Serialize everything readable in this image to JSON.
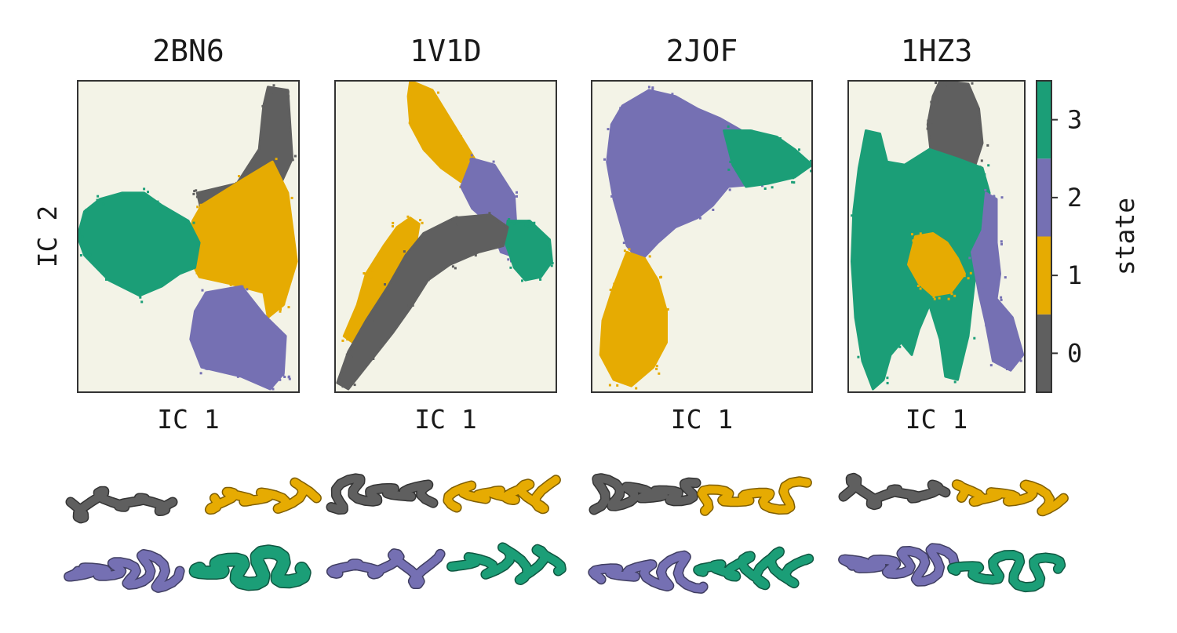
{
  "chart_data": {
    "type": "heatmap",
    "description_free": true,
    "panels": [
      {
        "title": "2BN6",
        "xlabel": "IC 1",
        "ylabel": "IC 2",
        "regions": [
          {
            "state": 0,
            "points": [
              [
                0.86,
                0.02
              ],
              [
                0.95,
                0.03
              ],
              [
                0.97,
                0.25
              ],
              [
                0.86,
                0.42
              ],
              [
                0.68,
                0.45
              ],
              [
                0.56,
                0.42
              ],
              [
                0.54,
                0.36
              ],
              [
                0.72,
                0.33
              ],
              [
                0.82,
                0.22
              ],
              [
                0.84,
                0.08
              ]
            ]
          },
          {
            "state": 1,
            "points": [
              [
                0.56,
                0.4
              ],
              [
                0.74,
                0.32
              ],
              [
                0.88,
                0.26
              ],
              [
                0.95,
                0.36
              ],
              [
                0.99,
                0.58
              ],
              [
                0.93,
                0.72
              ],
              [
                0.86,
                0.76
              ],
              [
                0.84,
                0.68
              ],
              [
                0.68,
                0.65
              ],
              [
                0.55,
                0.63
              ],
              [
                0.49,
                0.55
              ],
              [
                0.52,
                0.45
              ]
            ]
          },
          {
            "state": 2,
            "points": [
              [
                0.58,
                0.68
              ],
              [
                0.74,
                0.66
              ],
              [
                0.84,
                0.75
              ],
              [
                0.94,
                0.82
              ],
              [
                0.93,
                0.94
              ],
              [
                0.87,
                0.99
              ],
              [
                0.74,
                0.95
              ],
              [
                0.56,
                0.92
              ],
              [
                0.51,
                0.83
              ],
              [
                0.53,
                0.74
              ]
            ]
          },
          {
            "state": 3,
            "points": [
              [
                0.03,
                0.42
              ],
              [
                0.1,
                0.38
              ],
              [
                0.2,
                0.36
              ],
              [
                0.3,
                0.36
              ],
              [
                0.38,
                0.4
              ],
              [
                0.5,
                0.45
              ],
              [
                0.55,
                0.52
              ],
              [
                0.53,
                0.6
              ],
              [
                0.46,
                0.62
              ],
              [
                0.38,
                0.66
              ],
              [
                0.28,
                0.69
              ],
              [
                0.14,
                0.64
              ],
              [
                0.03,
                0.56
              ],
              [
                0.0,
                0.5
              ]
            ]
          }
        ]
      },
      {
        "title": "1V1D",
        "xlabel": "IC 1",
        "ylabel": "",
        "regions": [
          {
            "state": 1,
            "points": [
              [
                0.34,
                0.0
              ],
              [
                0.44,
                0.03
              ],
              [
                0.57,
                0.18
              ],
              [
                0.63,
                0.25
              ],
              [
                0.65,
                0.3
              ],
              [
                0.58,
                0.33
              ],
              [
                0.48,
                0.28
              ],
              [
                0.4,
                0.22
              ],
              [
                0.34,
                0.14
              ],
              [
                0.33,
                0.05
              ]
            ]
          },
          {
            "state": 2,
            "points": [
              [
                0.62,
                0.25
              ],
              [
                0.72,
                0.27
              ],
              [
                0.81,
                0.37
              ],
              [
                0.82,
                0.48
              ],
              [
                0.79,
                0.56
              ],
              [
                0.75,
                0.55
              ],
              [
                0.7,
                0.46
              ],
              [
                0.62,
                0.41
              ],
              [
                0.57,
                0.34
              ]
            ]
          },
          {
            "state": 3,
            "points": [
              [
                0.78,
                0.45
              ],
              [
                0.88,
                0.45
              ],
              [
                0.97,
                0.51
              ],
              [
                0.98,
                0.58
              ],
              [
                0.93,
                0.63
              ],
              [
                0.86,
                0.64
              ],
              [
                0.81,
                0.6
              ],
              [
                0.77,
                0.52
              ]
            ]
          },
          {
            "state": 1,
            "points": [
              [
                0.34,
                0.44
              ],
              [
                0.38,
                0.46
              ],
              [
                0.36,
                0.55
              ],
              [
                0.26,
                0.65
              ],
              [
                0.17,
                0.76
              ],
              [
                0.08,
                0.84
              ],
              [
                0.04,
                0.82
              ],
              [
                0.1,
                0.72
              ],
              [
                0.14,
                0.62
              ],
              [
                0.22,
                0.53
              ],
              [
                0.28,
                0.47
              ]
            ]
          },
          {
            "state": 0,
            "points": [
              [
                0.4,
                0.49
              ],
              [
                0.54,
                0.44
              ],
              [
                0.7,
                0.43
              ],
              [
                0.78,
                0.47
              ],
              [
                0.76,
                0.53
              ],
              [
                0.65,
                0.55
              ],
              [
                0.52,
                0.59
              ],
              [
                0.42,
                0.64
              ],
              [
                0.34,
                0.73
              ],
              [
                0.26,
                0.81
              ],
              [
                0.16,
                0.9
              ],
              [
                0.06,
                0.99
              ],
              [
                0.01,
                0.97
              ],
              [
                0.06,
                0.87
              ],
              [
                0.14,
                0.77
              ],
              [
                0.24,
                0.66
              ],
              [
                0.32,
                0.56
              ]
            ]
          }
        ]
      },
      {
        "title": "2JOF",
        "xlabel": "IC 1",
        "ylabel": "",
        "regions": [
          {
            "state": 2,
            "points": [
              [
                0.14,
                0.08
              ],
              [
                0.26,
                0.03
              ],
              [
                0.38,
                0.05
              ],
              [
                0.48,
                0.09
              ],
              [
                0.58,
                0.12
              ],
              [
                0.68,
                0.16
              ],
              [
                0.76,
                0.22
              ],
              [
                0.78,
                0.33
              ],
              [
                0.62,
                0.34
              ],
              [
                0.55,
                0.4
              ],
              [
                0.48,
                0.44
              ],
              [
                0.38,
                0.47
              ],
              [
                0.3,
                0.52
              ],
              [
                0.22,
                0.58
              ],
              [
                0.16,
                0.53
              ],
              [
                0.1,
                0.38
              ],
              [
                0.07,
                0.26
              ],
              [
                0.09,
                0.14
              ]
            ]
          },
          {
            "state": 3,
            "points": [
              [
                0.6,
                0.16
              ],
              [
                0.72,
                0.16
              ],
              [
                0.84,
                0.18
              ],
              [
                0.92,
                0.22
              ],
              [
                1.0,
                0.27
              ],
              [
                0.92,
                0.31
              ],
              [
                0.8,
                0.33
              ],
              [
                0.7,
                0.34
              ],
              [
                0.64,
                0.27
              ]
            ]
          },
          {
            "state": 1,
            "points": [
              [
                0.16,
                0.55
              ],
              [
                0.24,
                0.57
              ],
              [
                0.3,
                0.64
              ],
              [
                0.34,
                0.74
              ],
              [
                0.34,
                0.84
              ],
              [
                0.28,
                0.92
              ],
              [
                0.18,
                0.98
              ],
              [
                0.1,
                0.96
              ],
              [
                0.04,
                0.88
              ],
              [
                0.05,
                0.77
              ],
              [
                0.1,
                0.66
              ]
            ]
          }
        ]
      },
      {
        "title": "1HZ3",
        "xlabel": "IC 1",
        "ylabel": "",
        "regions": [
          {
            "state": 0,
            "points": [
              [
                0.52,
                0.0
              ],
              [
                0.68,
                0.01
              ],
              [
                0.74,
                0.09
              ],
              [
                0.76,
                0.2
              ],
              [
                0.72,
                0.27
              ],
              [
                0.58,
                0.28
              ],
              [
                0.47,
                0.24
              ],
              [
                0.45,
                0.14
              ],
              [
                0.48,
                0.05
              ]
            ]
          },
          {
            "state": 3,
            "points": [
              [
                0.1,
                0.16
              ],
              [
                0.18,
                0.17
              ],
              [
                0.22,
                0.26
              ],
              [
                0.32,
                0.27
              ],
              [
                0.46,
                0.22
              ],
              [
                0.62,
                0.25
              ],
              [
                0.76,
                0.28
              ],
              [
                0.8,
                0.36
              ],
              [
                0.78,
                0.5
              ],
              [
                0.72,
                0.62
              ],
              [
                0.7,
                0.72
              ],
              [
                0.68,
                0.82
              ],
              [
                0.62,
                0.96
              ],
              [
                0.55,
                0.95
              ],
              [
                0.52,
                0.83
              ],
              [
                0.46,
                0.72
              ],
              [
                0.4,
                0.8
              ],
              [
                0.36,
                0.88
              ],
              [
                0.3,
                0.84
              ],
              [
                0.24,
                0.88
              ],
              [
                0.2,
                0.96
              ],
              [
                0.14,
                0.99
              ],
              [
                0.08,
                0.9
              ],
              [
                0.04,
                0.76
              ],
              [
                0.02,
                0.58
              ],
              [
                0.03,
                0.42
              ],
              [
                0.06,
                0.28
              ]
            ]
          },
          {
            "state": 2,
            "points": [
              [
                0.78,
                0.36
              ],
              [
                0.84,
                0.38
              ],
              [
                0.84,
                0.52
              ],
              [
                0.86,
                0.62
              ],
              [
                0.84,
                0.7
              ],
              [
                0.93,
                0.76
              ],
              [
                0.99,
                0.88
              ],
              [
                0.92,
                0.93
              ],
              [
                0.82,
                0.9
              ],
              [
                0.78,
                0.78
              ],
              [
                0.74,
                0.68
              ],
              [
                0.7,
                0.55
              ],
              [
                0.76,
                0.48
              ]
            ]
          },
          {
            "state": 1,
            "points": [
              [
                0.38,
                0.5
              ],
              [
                0.48,
                0.49
              ],
              [
                0.56,
                0.52
              ],
              [
                0.62,
                0.57
              ],
              [
                0.66,
                0.62
              ],
              [
                0.58,
                0.68
              ],
              [
                0.48,
                0.69
              ],
              [
                0.4,
                0.65
              ],
              [
                0.34,
                0.59
              ]
            ]
          }
        ]
      }
    ],
    "colorbar": {
      "label": "state",
      "ticks": [
        "0",
        "1",
        "2",
        "3"
      ],
      "colors": [
        "#5f5f5f",
        "#e6ab02",
        "#7570b3",
        "#1b9e77"
      ]
    },
    "plot_background": "#f3f3e7",
    "structures": [
      {
        "panel": "2BN6",
        "states": [
          0,
          1,
          2,
          3
        ]
      },
      {
        "panel": "1V1D",
        "states": [
          0,
          1,
          2,
          3
        ]
      },
      {
        "panel": "2JOF",
        "states": [
          0,
          1,
          2,
          3
        ]
      },
      {
        "panel": "1HZ3",
        "states": [
          0,
          1,
          2,
          3
        ]
      }
    ]
  }
}
